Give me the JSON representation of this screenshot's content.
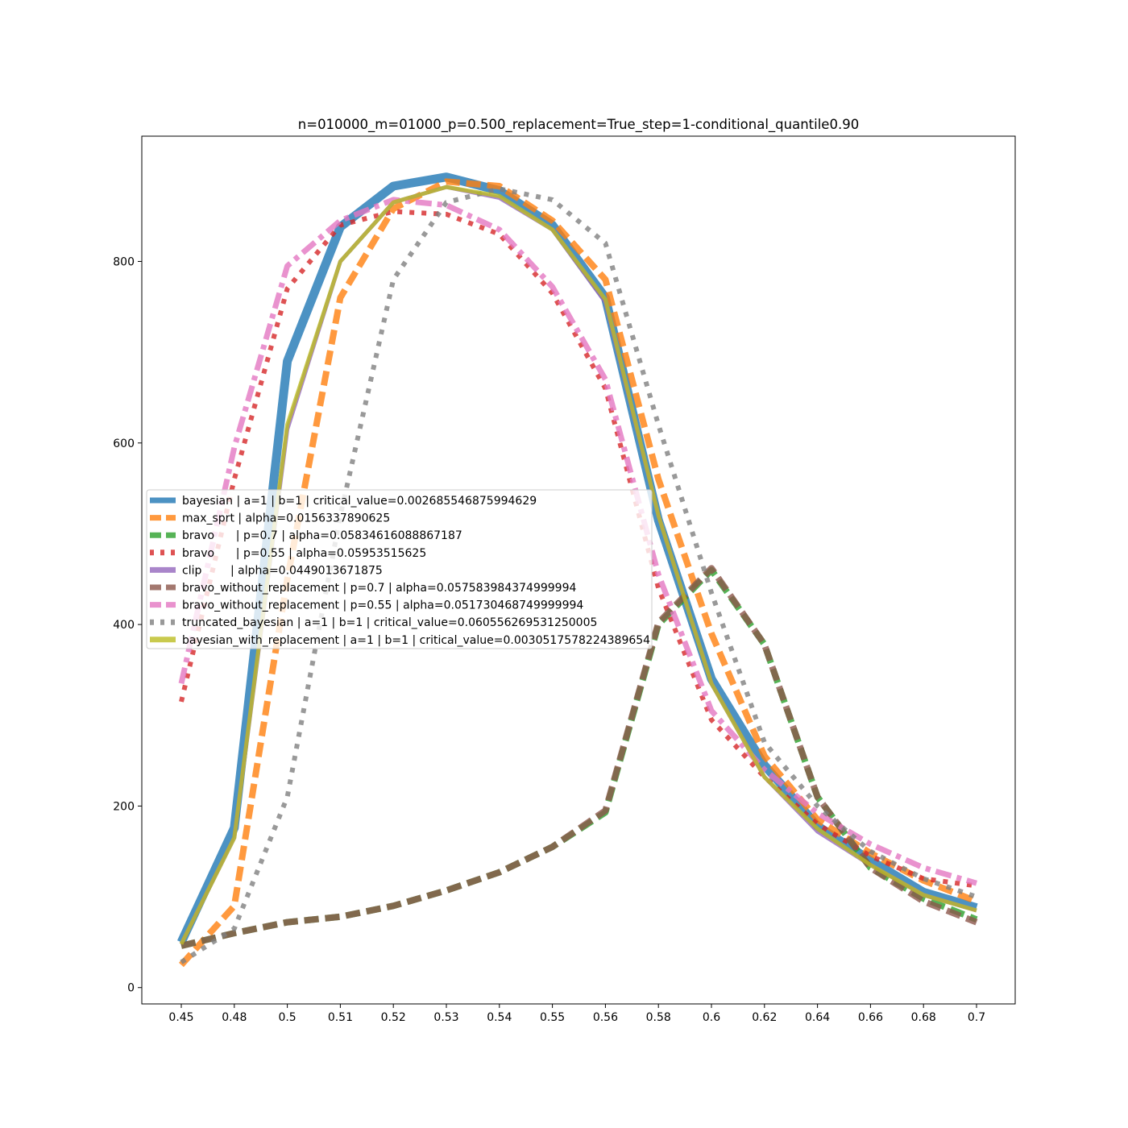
{
  "chart_data": {
    "type": "line",
    "title": "n=010000_m=01000_p=0.500_replacement=True_step=1-conditional_quantile0.90",
    "xlabel": "",
    "ylabel": "",
    "x": [
      0.45,
      0.48,
      0.5,
      0.51,
      0.52,
      0.53,
      0.54,
      0.55,
      0.56,
      0.58,
      0.6,
      0.62,
      0.64,
      0.66,
      0.68,
      0.7
    ],
    "x_tick_labels": [
      "0.45",
      "0.48",
      "0.5",
      "0.51",
      "0.52",
      "0.53",
      "0.54",
      "0.55",
      "0.56",
      "0.58",
      "0.6",
      "0.62",
      "0.64",
      "0.66",
      "0.68",
      "0.7"
    ],
    "y_ticks": [
      0,
      200,
      400,
      600,
      800
    ],
    "y_tick_labels": [
      "0",
      "200",
      "400",
      "600",
      "800"
    ],
    "ylim": [
      -18,
      938
    ],
    "grid": false,
    "legend_position": "center-left",
    "series": [
      {
        "name": "bayesian | a=1 | b=1 | critical_value=0.002685546875994629",
        "color": "#1f77b4",
        "style": "solid",
        "values": [
          50,
          176,
          690,
          838,
          883,
          893,
          878,
          840,
          760,
          515,
          340,
          245,
          178,
          140,
          105,
          88
        ]
      },
      {
        "name": "max_sprt | alpha=0.0156337890625",
        "color": "#ff7f0e",
        "style": "dashed",
        "values": [
          25,
          90,
          450,
          760,
          858,
          888,
          883,
          845,
          780,
          560,
          390,
          255,
          185,
          148,
          118,
          95
        ]
      },
      {
        "name": "bravo      | p=0.7 | alpha=0.05834616088867187",
        "color": "#2ca02c",
        "style": "dashed",
        "values": [
          46,
          60,
          72,
          78,
          90,
          107,
          127,
          155,
          193,
          400,
          460,
          378,
          210,
          132,
          98,
          75
        ]
      },
      {
        "name": "bravo      | p=0.55 | alpha=0.05953515625",
        "color": "#d62728",
        "style": "dotted",
        "values": [
          315,
          560,
          770,
          840,
          855,
          852,
          830,
          765,
          660,
          440,
          295,
          232,
          180,
          145,
          120,
          112
        ]
      },
      {
        "name": "clip        | alpha=0.0449013671875",
        "color": "#9467bd",
        "style": "solid",
        "values": [
          48,
          165,
          615,
          800,
          865,
          882,
          870,
          835,
          755,
          520,
          335,
          232,
          172,
          135,
          102,
          85
        ]
      },
      {
        "name": "bravo_without_replacement | p=0.7 | alpha=0.057583984374999994",
        "color": "#8c564b",
        "style": "dashed",
        "values": [
          46,
          60,
          72,
          78,
          90,
          107,
          127,
          155,
          195,
          402,
          462,
          378,
          210,
          132,
          95,
          72
        ]
      },
      {
        "name": "bravo_without_replacement | p=0.55 | alpha=0.051730468749999994",
        "color": "#e377c2",
        "style": "dashdot",
        "values": [
          335,
          595,
          795,
          845,
          868,
          862,
          835,
          772,
          670,
          455,
          305,
          240,
          192,
          158,
          132,
          115
        ]
      },
      {
        "name": "truncated_bayesian | a=1 | b=1 | critical_value=0.060556269531250005",
        "color": "#7f7f7f",
        "style": "dotted",
        "values": [
          28,
          65,
          210,
          520,
          780,
          865,
          880,
          868,
          820,
          620,
          435,
          270,
          200,
          150,
          120,
          100
        ]
      },
      {
        "name": "bayesian_with_replacement | a=1 | b=1 | critical_value=0.0030517578224389654",
        "color": "#bcbd22",
        "style": "solid",
        "values": [
          48,
          165,
          620,
          800,
          865,
          882,
          872,
          835,
          758,
          520,
          335,
          232,
          175,
          135,
          102,
          85
        ]
      }
    ]
  }
}
